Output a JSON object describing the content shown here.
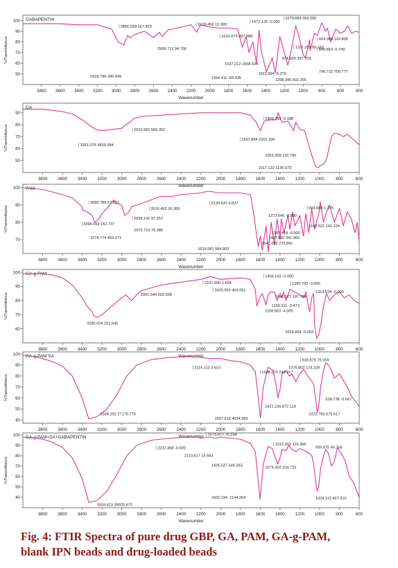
{
  "figure": {
    "caption_line1": "Fig. 4: FTIR Spectra of pure drug GBP, GA, PAM, GA-g-PAM,",
    "caption_line2": "blank IPN beads and drug-loaded beads"
  },
  "colors": {
    "line": "#e0338f",
    "frame": "#555555",
    "text": "#222222",
    "caption": "#8b1a1a"
  },
  "chart_data": [
    {
      "type": "line",
      "title": "GABAPENTIN",
      "xlabel": "Wavenumber",
      "ylabel": "%Transmittance",
      "xlim": [
        4000,
        400
      ],
      "ylim": [
        40,
        105
      ],
      "xticks": [
        3800,
        3600,
        3400,
        3200,
        3000,
        2800,
        2600,
        2400,
        2200,
        2000,
        1800,
        1600,
        1400,
        1200,
        1000,
        800,
        600,
        400
      ],
      "yticks": [
        100,
        90,
        80,
        70,
        60,
        50
      ],
      "series": [
        {
          "x": [
            4000,
            3800,
            3600,
            3400,
            3200,
            3050,
            2980,
            2919,
            2880,
            2856,
            2800,
            2700,
            2600,
            2540,
            2506,
            2450,
            2400,
            2300,
            2200,
            2139,
            2100,
            2000,
            1900,
            1800,
            1700,
            1650,
            1610,
            1580,
            1537,
            1500,
            1472,
            1445,
            1394,
            1330,
            1298,
            1250,
            1163,
            1120,
            1080,
            1050,
            1000,
            975,
            930,
            924,
            880,
            850,
            800,
            760,
            740,
            706,
            650,
            600,
            560,
            520,
            480,
            440,
            400
          ],
          "y": [
            97,
            97,
            97,
            96,
            96,
            92,
            80,
            77,
            86,
            84,
            87,
            90,
            84,
            89,
            85,
            91,
            92,
            94,
            96,
            89,
            96,
            94,
            93,
            93,
            92,
            75,
            85,
            70,
            80,
            60,
            91,
            70,
            52,
            65,
            51,
            85,
            58,
            75,
            95,
            87,
            68,
            65,
            82,
            72,
            88,
            86,
            98,
            90,
            93,
            80,
            92,
            88,
            90,
            95,
            88,
            90,
            89
          ]
        }
      ],
      "annotations": [
        "2856.559 167.929",
        "2139.456 12.393",
        "1472.125 -0.000",
        "1079.689 356.596",
        "1610.075 497.588",
        "924.368 133.805",
        "1117.315 56.183",
        "849.863 -0.740",
        "1537.212 1558.534",
        "974.939 397.702",
        "2506.712 94.756",
        "1163.564 -5.370",
        "706.715 750.777",
        "2918.796 340.949",
        "1394.411 -69.035",
        "1298.345 602.266"
      ]
    },
    {
      "type": "line",
      "title": "GA",
      "xlabel": "Wavenumber",
      "ylabel": "%Transmittance",
      "xlim": [
        4000,
        600
      ],
      "ylim": [
        40,
        98
      ],
      "xticks": [
        3800,
        3600,
        3400,
        3200,
        3000,
        2800,
        2600,
        2400,
        2200,
        2000,
        1800,
        1600,
        1400,
        1200,
        1000,
        800,
        600
      ],
      "yticks": [
        90,
        80,
        70,
        60,
        50
      ],
      "series": [
        {
          "x": [
            4000,
            3800,
            3700,
            3600,
            3500,
            3400,
            3300,
            3261,
            3200,
            3100,
            3000,
            2960,
            2920,
            2880,
            2800,
            2600,
            2400,
            2200,
            2000,
            1800,
            1700,
            1640,
            1598,
            1560,
            1500,
            1440,
            1420,
            1380,
            1320,
            1263,
            1240,
            1200,
            1150,
            1100,
            1070,
            1040,
            1017,
            990,
            960,
            930,
            900,
            880,
            850,
            800,
            760,
            720,
            650,
            600
          ],
          "y": [
            93,
            93,
            92,
            91,
            89,
            84,
            78,
            76,
            75,
            76,
            77,
            80,
            82,
            85,
            87,
            88,
            89,
            90,
            90,
            90,
            88,
            82,
            75,
            83,
            84,
            84,
            90,
            82,
            83,
            75,
            82,
            76,
            75,
            60,
            52,
            45,
            44,
            46,
            47,
            51,
            62,
            70,
            73,
            72,
            70,
            72,
            67,
            63
          ]
        }
      ],
      "annotations": [
        "1409.790 -0.188",
        "2910.581 550.352",
        "1597.894 1001.336",
        "3261.076 5839.584",
        "1263.259 132.790",
        "1017.122 1135.673"
      ]
    },
    {
      "type": "line",
      "title": "PAM",
      "xlabel": "Wavenumber",
      "ylabel": "%Transmittance",
      "xlim": [
        4000,
        600
      ],
      "ylim": [
        62,
        102
      ],
      "xticks": [
        3800,
        3600,
        3400,
        3200,
        3000,
        2800,
        2600,
        2400,
        2200,
        2000,
        1800,
        1600,
        1400,
        1200,
        1000,
        800,
        600
      ],
      "yticks": [
        100,
        90,
        80,
        70
      ],
      "series": [
        {
          "x": [
            4000,
            3800,
            3600,
            3500,
            3400,
            3396,
            3350,
            3300,
            3275,
            3230,
            3200,
            3150,
            3081,
            3060,
            3000,
            2970,
            2928,
            2900,
            2850,
            2800,
            2700,
            2615,
            2500,
            2400,
            2200,
            2129,
            2000,
            1800,
            1700,
            1680,
            1655,
            1620,
            1600,
            1580,
            1541,
            1520,
            1490,
            1457,
            1430,
            1400,
            1387,
            1360,
            1320,
            1300,
            1273,
            1250,
            1200,
            1163,
            1140,
            1110,
            1080,
            1050,
            1000,
            994,
            960,
            930,
            900,
            850,
            800,
            760,
            720,
            680,
            640,
            620,
            600
          ],
          "y": [
            100,
            99,
            96,
            94,
            89,
            87,
            86,
            84,
            80,
            82,
            85,
            88,
            93,
            91,
            90,
            84,
            86,
            89,
            90,
            91,
            93,
            95,
            95,
            96,
            97,
            98,
            97,
            97,
            96,
            90,
            80,
            66,
            72,
            64,
            78,
            63,
            80,
            67,
            82,
            70,
            82,
            74,
            84,
            76,
            86,
            78,
            84,
            72,
            85,
            74,
            88,
            76,
            87,
            92,
            80,
            86,
            90,
            80,
            88,
            78,
            86,
            82,
            74,
            80,
            69
          ]
        }
      ],
      "annotations": [
        "3080.785 57.651",
        "2615.452 26.309",
        "2129.637 0.027",
        "3396.063 152.737",
        "2928.141 97.257",
        "993.688 1.375",
        "1273.645 -0.000",
        "2970.719 79.380",
        "3274.774 463.371",
        "1163.521 141.224",
        "1387.418 -0.000",
        "1457.620 341.960",
        "1541.092 723.891",
        "1619.581 584.802"
      ]
    },
    {
      "type": "line",
      "title": "GA-g-PAM",
      "xlabel": "Wavenumber",
      "ylabel": "%Transmittance",
      "xlim": [
        4000,
        600
      ],
      "ylim": [
        50,
        102
      ],
      "xticks": [
        3800,
        3600,
        3400,
        3200,
        3000,
        2800,
        2600,
        2400,
        2200,
        2000,
        1800,
        1600,
        1400,
        1200,
        1000,
        800,
        600
      ],
      "yticks": [
        100,
        90,
        80,
        70,
        60
      ],
      "series": [
        {
          "x": [
            4000,
            3800,
            3700,
            3600,
            3500,
            3400,
            3350,
            3300,
            3280,
            3250,
            3200,
            3100,
            3000,
            2960,
            2901,
            2850,
            2800,
            2600,
            2400,
            2200,
            2101,
            2000,
            1800,
            1700,
            1680,
            1650,
            1635,
            1600,
            1580,
            1542,
            1520,
            1500,
            1456,
            1430,
            1400,
            1380,
            1365,
            1340,
            1315,
            1300,
            1250,
            1200,
            1159,
            1140,
            1110,
            1100,
            1080,
            1060,
            1050,
            1030,
            1010,
            990,
            960,
            930,
            900,
            850,
            800,
            750,
            700,
            650,
            600
          ],
          "y": [
            99,
            99,
            98,
            96,
            91,
            82,
            76,
            72,
            69,
            68,
            70,
            76,
            82,
            84,
            80,
            84,
            87,
            91,
            93,
            95,
            97,
            95,
            96,
            95,
            92,
            88,
            76,
            83,
            85,
            77,
            84,
            86,
            86,
            80,
            85,
            82,
            86,
            80,
            85,
            88,
            86,
            84,
            82,
            86,
            75,
            72,
            82,
            85,
            62,
            53,
            56,
            62,
            76,
            85,
            80,
            84,
            86,
            82,
            84,
            80,
            78
          ]
        }
      ],
      "annotations": [
        "1456.143 -0.000",
        "2101.605 1.694",
        "1365.792 -0.000",
        "1635.093 463.061",
        "1542.077 197.784",
        "1314.534 -0.000",
        "2901.340 302.508",
        "1159.911 -3.473",
        "3280.034 201.646",
        "1108.663 -4.005",
        "1029.834 -0.003"
      ]
    },
    {
      "type": "line",
      "title": "GA-g-PAM SA",
      "xlabel": "Wavenumber",
      "ylabel": "%Transmittance",
      "xlim": [
        4000,
        600
      ],
      "ylim": [
        37,
        102
      ],
      "xticks": [
        3800,
        3600,
        3400,
        3200,
        3000,
        2800,
        2600,
        2400,
        2200,
        2000,
        1800,
        1600,
        1400,
        1200,
        1000,
        800,
        600
      ],
      "yticks": [
        100,
        90,
        80,
        70,
        60,
        50,
        40
      ],
      "series": [
        {
          "x": [
            4000,
            3900,
            3800,
            3700,
            3600,
            3500,
            3400,
            3334,
            3250,
            3150,
            3050,
            2950,
            2850,
            2700,
            2500,
            2300,
            2200,
            2116,
            2000,
            1900,
            1800,
            1700,
            1650,
            1620,
            1598,
            1570,
            1520,
            1470,
            1440,
            1421,
            1400,
            1380,
            1340,
            1308,
            1280,
            1240,
            1200,
            1160,
            1120,
            1076,
            1060,
            1040,
            1024,
            1010,
            990,
            960,
            939,
            910,
            880,
            850,
            800,
            760,
            720,
            680,
            650,
            620,
            600
          ],
          "y": [
            99,
            98,
            96,
            93,
            89,
            80,
            60,
            41,
            43,
            50,
            63,
            80,
            90,
            95,
            97,
            98,
            97,
            96,
            96,
            94,
            93,
            90,
            84,
            60,
            42,
            70,
            88,
            85,
            72,
            60,
            68,
            82,
            85,
            80,
            82,
            75,
            82,
            86,
            80,
            75,
            72,
            60,
            47,
            52,
            70,
            85,
            92,
            90,
            85,
            78,
            82,
            76,
            70,
            62,
            58,
            55,
            52
          ]
        }
      ],
      "annotations": [
        "2116.110 3.615",
        "939.879 79.559",
        "1308.073 249.417",
        "1076.803 124.228",
        "618.738 -0.667",
        "1421.236 872.114",
        "3334.292 27170.776",
        "1023.783 676.617",
        "1597.619 4534.993"
      ]
    },
    {
      "type": "line",
      "title": "GA-g-PAM+SA+GABAPENTIN",
      "xlabel": "Wavenumber",
      "ylabel": "%Transmittance",
      "xlim": [
        4000,
        600
      ],
      "ylim": [
        30,
        102
      ],
      "xticks": [
        3800,
        3600,
        3400,
        3200,
        3000,
        2800,
        2600,
        2400,
        2200,
        2000,
        1800,
        1600,
        1400,
        1200,
        1000,
        800,
        600
      ],
      "yticks": [
        100,
        90,
        80,
        70,
        60,
        50,
        40
      ],
      "series": [
        {
          "x": [
            4000,
            3900,
            3800,
            3700,
            3600,
            3500,
            3400,
            3334,
            3250,
            3150,
            3050,
            2950,
            2850,
            2700,
            2500,
            2300,
            2232,
            2200,
            2113,
            2050,
            2000,
            1900,
            1800,
            1700,
            1650,
            1620,
            1602,
            1570,
            1520,
            1480,
            1425,
            1400,
            1380,
            1340,
            1312,
            1280,
            1240,
            1200,
            1150,
            1100,
            1079,
            1060,
            1040,
            1024,
            1010,
            990,
            960,
            939,
            910,
            880,
            850,
            820,
            780,
            740,
            700,
            660,
            620,
            600
          ],
          "y": [
            98,
            97,
            96,
            93,
            88,
            78,
            58,
            35,
            37,
            46,
            62,
            80,
            90,
            95,
            97,
            98,
            98,
            97,
            98,
            97,
            98,
            97,
            96,
            92,
            84,
            55,
            38,
            72,
            89,
            87,
            72,
            78,
            86,
            85,
            90,
            86,
            84,
            87,
            85,
            82,
            80,
            72,
            55,
            46,
            50,
            68,
            80,
            86,
            82,
            70,
            75,
            88,
            82,
            75,
            60,
            55,
            45,
            40
          ]
        }
      ],
      "annotations": [
        "1573.877 75.294",
        "2232.468 -0.000",
        "1312.202 116.366",
        "2113.617 15.563",
        "939.875 60.765",
        "1425.537 546.263",
        "1079.350 104.729",
        "1602.234 -1144.264",
        "1024.113 427.310",
        "3334.623 28920.672"
      ]
    }
  ]
}
